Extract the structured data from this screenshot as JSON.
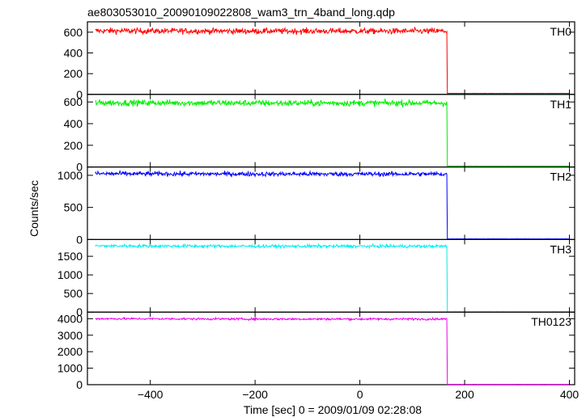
{
  "title": "ae803053010_20090109022808_wam3_trn_4band_long.qdp",
  "xlabel": "Time [sec] 0 = 2009/01/09 02:28:08",
  "ylabel": "Counts/sec",
  "chart_data": {
    "type": "line",
    "title": "ae803053010_20090109022808_wam3_trn_4band_long.qdp",
    "xlabel": "Time [sec] 0 = 2009/01/09 02:28:08",
    "ylabel": "Counts/sec",
    "xlim": [
      -520,
      410
    ],
    "x_ticks": [
      -400,
      -200,
      0,
      200,
      400
    ],
    "x_tick_labels": [
      "−400",
      "−200",
      "0",
      "200",
      "400"
    ],
    "grid": false,
    "step_time": 167,
    "x_start": -505,
    "x_end": 400,
    "panels": [
      {
        "name": "TH0",
        "color": "#ff0000",
        "ylim": [
          0,
          700
        ],
        "y_ticks": [
          0,
          200,
          400,
          600
        ],
        "before_level": 610,
        "after_level": 10,
        "noise": 20
      },
      {
        "name": "TH1",
        "color": "#00ee00",
        "ylim": [
          0,
          670
        ],
        "y_ticks": [
          0,
          200,
          400,
          600
        ],
        "before_level": 590,
        "after_level": 8,
        "noise": 20
      },
      {
        "name": "TH2",
        "color": "#0000ff",
        "ylim": [
          0,
          1130
        ],
        "y_ticks": [
          0,
          500,
          1000
        ],
        "before_level": 1020,
        "after_level": 10,
        "noise": 25
      },
      {
        "name": "TH3",
        "color": "#00eeee",
        "ylim": [
          0,
          1950
        ],
        "y_ticks": [
          0,
          500,
          1000,
          1500
        ],
        "before_level": 1770,
        "after_level": 10,
        "noise": 30
      },
      {
        "name": "TH0123",
        "color": "#ee00ee",
        "ylim": [
          0,
          4400
        ],
        "y_ticks": [
          0,
          1000,
          2000,
          3000,
          4000
        ],
        "before_level": 3980,
        "after_level": 20,
        "noise": 45
      }
    ]
  }
}
